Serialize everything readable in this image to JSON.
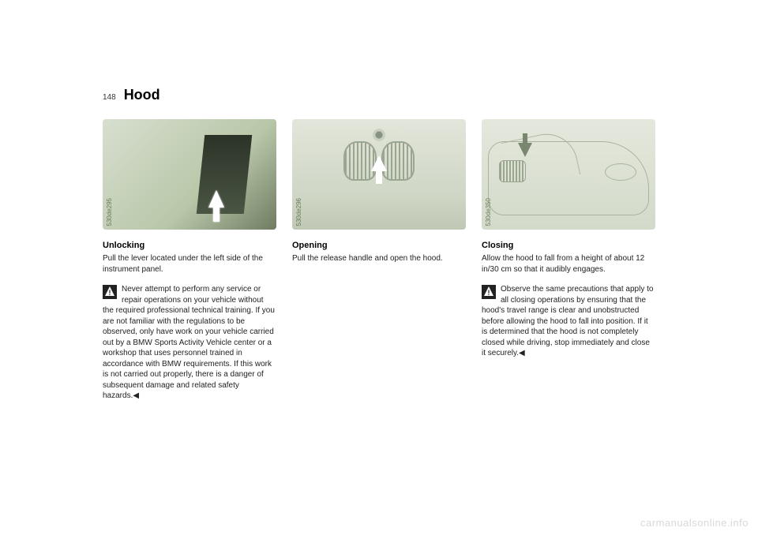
{
  "page_number": "148",
  "title": "Hood",
  "watermark": "carmanualsonline.info",
  "columns": {
    "unlocking": {
      "image_id": "530de295",
      "heading": "Unlocking",
      "intro": "Pull the lever located under the left side of the instrument panel.",
      "warning": "Never attempt to perform any service or repair operations on your vehicle without the required professional technical training. If you are not familiar with the regulations to be observed, only have work on your vehicle carried out by a BMW Sports Activity Vehicle center or a workshop that uses personnel trained in accordance with BMW requirements. If this work is not carried out properly, there is a danger of subsequent damage and related safety hazards.◀"
    },
    "opening": {
      "image_id": "530de296",
      "heading": "Opening",
      "intro": "Pull the release handle and open the hood."
    },
    "closing": {
      "image_id": "530de350",
      "heading": "Closing",
      "intro": "Allow the hood to fall from a height of about 12 in/30 cm so that it audibly engages.",
      "warning": "Observe the same precautions that apply to all closing operations by ensuring that the hood's travel range is clear and unobstructed before allowing the hood to fall into position. If it is determined that the hood is not completely closed while driving, stop immediately and close it securely.◀"
    }
  }
}
